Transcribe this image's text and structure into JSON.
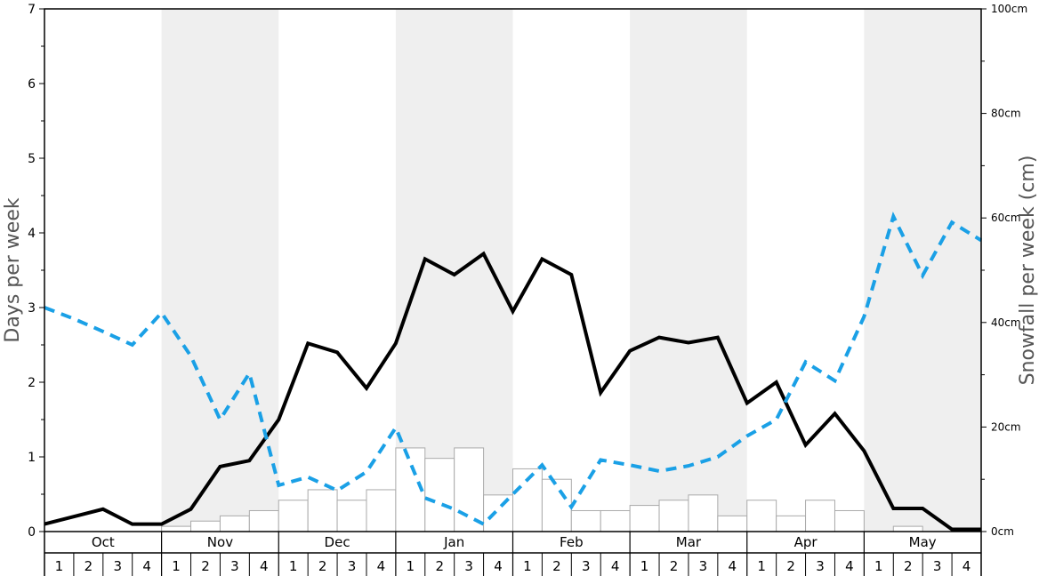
{
  "chart_data": {
    "type": "line",
    "ylabel_left": "Days per week",
    "ylabel_right": "Snowfall per week (cm)",
    "ylim_left": [
      0,
      7
    ],
    "ylim_right": [
      0,
      100
    ],
    "left_ticks": [
      "0",
      "1",
      "2",
      "3",
      "4",
      "5",
      "6",
      "7"
    ],
    "right_ticks": [
      "0cm",
      "20cm",
      "40cm",
      "60cm",
      "80cm",
      "100cm"
    ],
    "months": [
      "Oct",
      "Nov",
      "Dec",
      "Jan",
      "Feb",
      "Mar",
      "Apr",
      "May"
    ],
    "weeks": [
      "1",
      "2",
      "3",
      "4"
    ],
    "shaded_months": [
      "Nov",
      "Jan",
      "Mar",
      "May"
    ],
    "series": [
      {
        "kind": "bar",
        "axis": "right",
        "values": [
          0,
          0,
          0,
          0,
          1,
          2,
          3,
          4,
          6,
          8,
          6,
          8,
          16,
          14,
          16,
          7,
          12,
          10,
          4,
          4,
          5,
          6,
          7,
          3,
          6,
          3,
          6,
          4,
          0,
          1,
          0,
          0
        ]
      },
      {
        "kind": "line",
        "axis": "left",
        "style": "solid",
        "color": "#000000",
        "values": [
          0.1,
          0.2,
          0.3,
          0.1,
          0.1,
          0.3,
          0.87,
          0.95,
          1.5,
          2.52,
          2.4,
          1.92,
          2.52,
          3.65,
          3.44,
          3.72,
          2.95,
          3.65,
          3.44,
          1.86,
          2.42,
          2.6,
          2.53,
          2.6,
          1.72,
          2.0,
          1.16,
          1.58,
          1.08,
          0.31,
          0.31,
          0.03,
          0.03
        ]
      },
      {
        "kind": "line",
        "axis": "left",
        "style": "dashed",
        "color": "#1aa0e6",
        "values": [
          3.0,
          2.85,
          2.68,
          2.5,
          2.93,
          2.35,
          1.5,
          2.12,
          0.62,
          0.73,
          0.55,
          0.8,
          1.39,
          0.45,
          0.3,
          0.1,
          0.5,
          0.89,
          0.33,
          0.96,
          0.89,
          0.81,
          0.88,
          1.0,
          1.28,
          1.5,
          2.27,
          2.02,
          2.88,
          4.22,
          3.43,
          4.14,
          3.9
        ]
      }
    ]
  }
}
